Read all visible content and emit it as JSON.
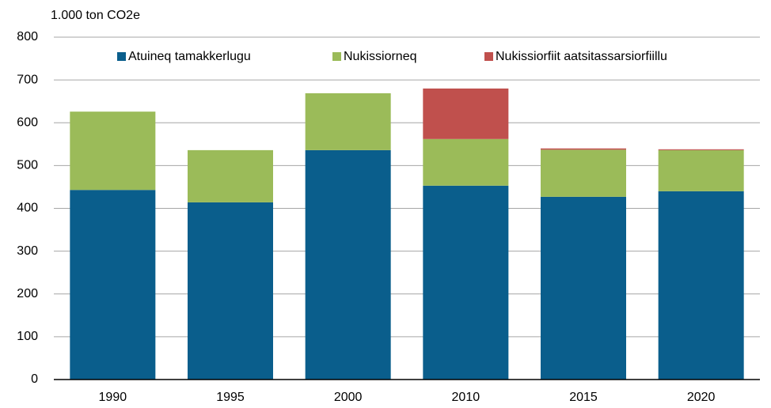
{
  "chart_data": {
    "type": "stacked_bar",
    "ylabel": "1.000 ton CO2e",
    "categories": [
      "1990",
      "1995",
      "2000",
      "2010",
      "2015",
      "2020"
    ],
    "series": [
      {
        "name": "Atuineq tamakkerlugu",
        "color": "#0a5e8c",
        "values": [
          443,
          414,
          536,
          453,
          427,
          440
        ]
      },
      {
        "name": "Nukissiorneq",
        "color": "#9bbb59",
        "values": [
          183,
          122,
          133,
          109,
          110,
          96
        ]
      },
      {
        "name": "Nukissiorfiit aatsitassarsiorfiillu",
        "color": "#c0504d",
        "values": [
          0,
          0,
          0,
          118,
          3,
          2
        ]
      }
    ],
    "ylim": [
      0,
      800
    ],
    "yticks": [
      0,
      100,
      200,
      300,
      400,
      500,
      600,
      700,
      800
    ],
    "grid": true,
    "legend": "top"
  }
}
